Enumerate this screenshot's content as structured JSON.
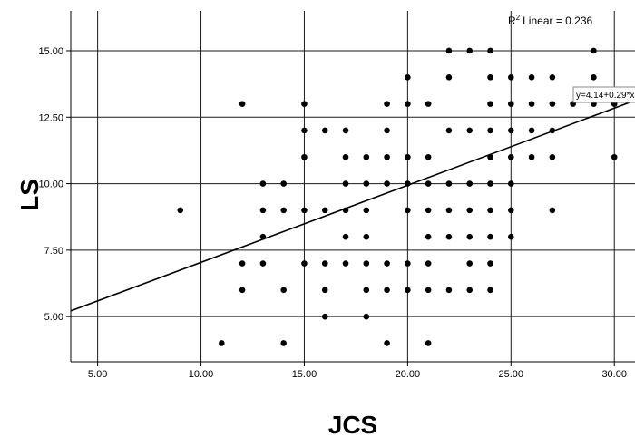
{
  "chart_data": {
    "type": "scatter",
    "xlabel": "JCS",
    "ylabel": "LS",
    "xlim": [
      3.7,
      31
    ],
    "ylim": [
      3.3,
      16.5
    ],
    "x_ticks": [
      "5.00",
      "10.00",
      "15.00",
      "20.00",
      "25.00",
      "30.00"
    ],
    "y_ticks": [
      "5.00",
      "7.50",
      "10.00",
      "12.50",
      "15.00"
    ],
    "grid": true,
    "points": [
      [
        9,
        9
      ],
      [
        11,
        4
      ],
      [
        12,
        13
      ],
      [
        12,
        7
      ],
      [
        12,
        6
      ],
      [
        13,
        10
      ],
      [
        13,
        9
      ],
      [
        13,
        8
      ],
      [
        13,
        7
      ],
      [
        14,
        10
      ],
      [
        14,
        9
      ],
      [
        14,
        6
      ],
      [
        14,
        4
      ],
      [
        15,
        13
      ],
      [
        15,
        12
      ],
      [
        15,
        11
      ],
      [
        15,
        9
      ],
      [
        15,
        7
      ],
      [
        16,
        12
      ],
      [
        16,
        9
      ],
      [
        16,
        7
      ],
      [
        16,
        6
      ],
      [
        16,
        5
      ],
      [
        17,
        12
      ],
      [
        17,
        11
      ],
      [
        17,
        10
      ],
      [
        17,
        9
      ],
      [
        17,
        8
      ],
      [
        17,
        7
      ],
      [
        18,
        11
      ],
      [
        18,
        10
      ],
      [
        18,
        9
      ],
      [
        18,
        8
      ],
      [
        18,
        7
      ],
      [
        18,
        6
      ],
      [
        18,
        5
      ],
      [
        19,
        13
      ],
      [
        19,
        12
      ],
      [
        19,
        11
      ],
      [
        19,
        10
      ],
      [
        19,
        7
      ],
      [
        19,
        6
      ],
      [
        19,
        4
      ],
      [
        20,
        14
      ],
      [
        20,
        13
      ],
      [
        20,
        11
      ],
      [
        20,
        10
      ],
      [
        20,
        9
      ],
      [
        20,
        7
      ],
      [
        20,
        6
      ],
      [
        21,
        13
      ],
      [
        21,
        11
      ],
      [
        21,
        10
      ],
      [
        21,
        9
      ],
      [
        21,
        8
      ],
      [
        21,
        7
      ],
      [
        21,
        6
      ],
      [
        21,
        4
      ],
      [
        22,
        15
      ],
      [
        22,
        14
      ],
      [
        22,
        12
      ],
      [
        22,
        10
      ],
      [
        22,
        9
      ],
      [
        22,
        8
      ],
      [
        22,
        6
      ],
      [
        23,
        15
      ],
      [
        23,
        12
      ],
      [
        23,
        10
      ],
      [
        23,
        9
      ],
      [
        23,
        8
      ],
      [
        23,
        7
      ],
      [
        23,
        6
      ],
      [
        24,
        15
      ],
      [
        24,
        14
      ],
      [
        24,
        13
      ],
      [
        24,
        12
      ],
      [
        24,
        11
      ],
      [
        24,
        10
      ],
      [
        24,
        9
      ],
      [
        24,
        8
      ],
      [
        24,
        7
      ],
      [
        24,
        6
      ],
      [
        25,
        14
      ],
      [
        25,
        13
      ],
      [
        25,
        12
      ],
      [
        25,
        11
      ],
      [
        25,
        10
      ],
      [
        25,
        9
      ],
      [
        25,
        8
      ],
      [
        26,
        14
      ],
      [
        26,
        13
      ],
      [
        26,
        12
      ],
      [
        26,
        11
      ],
      [
        27,
        14
      ],
      [
        27,
        13
      ],
      [
        27,
        12
      ],
      [
        27,
        11
      ],
      [
        27,
        9
      ],
      [
        28,
        13
      ],
      [
        29,
        15
      ],
      [
        29,
        14
      ],
      [
        29,
        13
      ],
      [
        30,
        13
      ],
      [
        30,
        11
      ]
    ],
    "fit_line": {
      "intercept": 4.14,
      "slope": 0.29
    },
    "r2_label": "Linear = 0.236",
    "r2_prefix": "R",
    "r2_sup": "2",
    "equation_label": "y=4.14+0.29*x"
  }
}
